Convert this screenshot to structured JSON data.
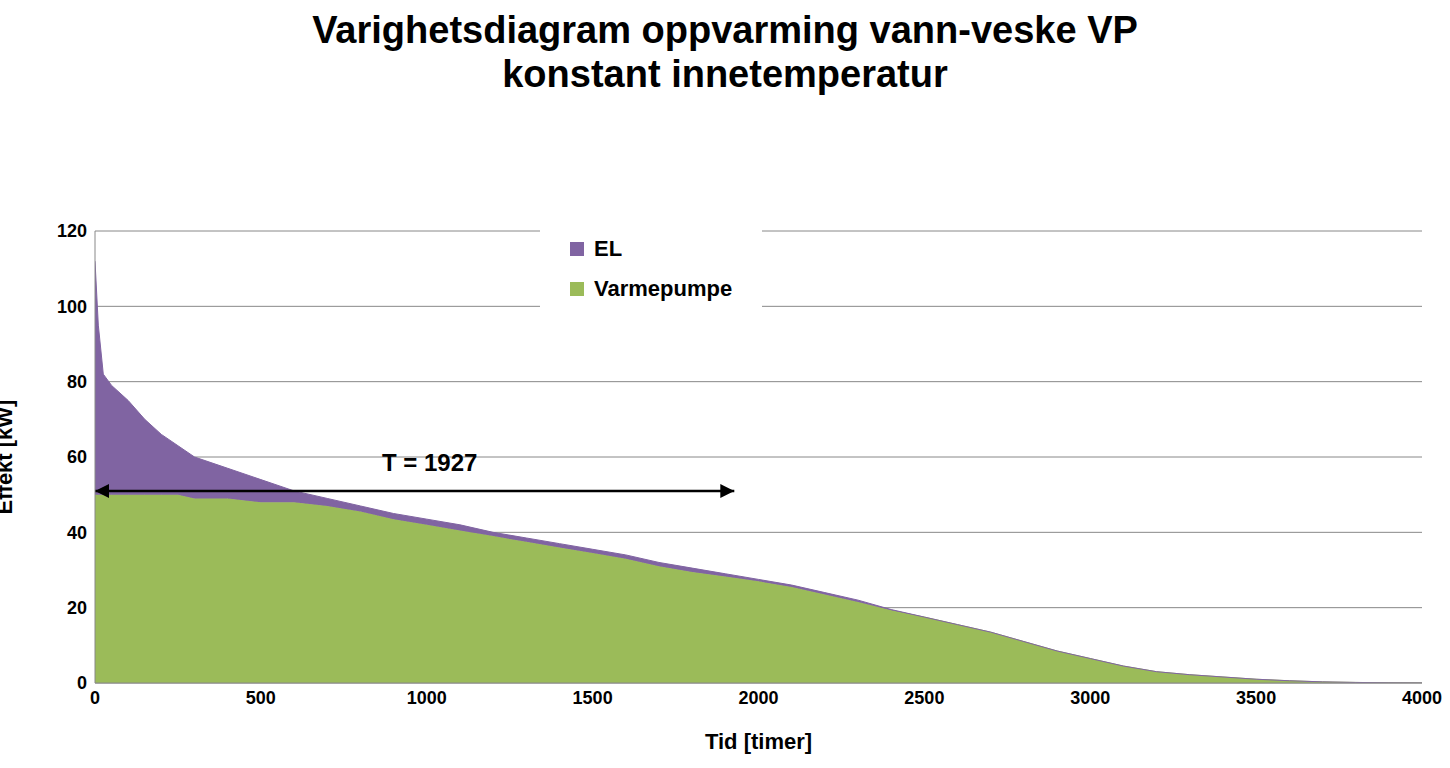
{
  "chart_data": {
    "type": "area",
    "title": "Varighetsdiagram oppvarming vann-veske VP\nkonstant innetemperatur",
    "x_label": "Tid [timer]",
    "y_label": "Effekt [kW]",
    "x": [
      0,
      10,
      25,
      50,
      100,
      150,
      200,
      250,
      300,
      400,
      500,
      600,
      700,
      800,
      900,
      1000,
      1100,
      1200,
      1300,
      1400,
      1500,
      1600,
      1700,
      1800,
      1900,
      2000,
      2100,
      2200,
      2300,
      2400,
      2500,
      2600,
      2700,
      2800,
      2900,
      3000,
      3100,
      3200,
      3300,
      3400,
      3500,
      3600,
      3700,
      3800,
      3900,
      4000
    ],
    "series": [
      {
        "name": "EL",
        "color": "#8064a2",
        "values": [
          62,
          45,
          32,
          29,
          25,
          20,
          16,
          13,
          11,
          8,
          6,
          3,
          2,
          1.5,
          1.5,
          1.5,
          1.5,
          1,
          1,
          1,
          1,
          1,
          1,
          1,
          0.7,
          0.5,
          0.5,
          0.5,
          0.5,
          0.2,
          0,
          0,
          0,
          0,
          0,
          0,
          0,
          0,
          0,
          0,
          0,
          0,
          0,
          0,
          0,
          0
        ]
      },
      {
        "name": "Varmepumpe",
        "color": "#9bbb59",
        "values": [
          50,
          50,
          50,
          50,
          50,
          50,
          50,
          50,
          49,
          49,
          48,
          48,
          47,
          45.5,
          43.5,
          42,
          40.5,
          39,
          37.5,
          36,
          34.5,
          33,
          31,
          29.5,
          28.3,
          27,
          25.5,
          23.5,
          21.5,
          19.3,
          17.5,
          15.5,
          13.5,
          11,
          8.5,
          6.5,
          4.5,
          3,
          2.2,
          1.6,
          1,
          0.6,
          0.3,
          0.15,
          0.05,
          0
        ]
      }
    ],
    "stacked": true,
    "xlim": [
      0,
      4000
    ],
    "xticks": [
      0,
      500,
      1000,
      1500,
      2000,
      2500,
      3000,
      3500,
      4000
    ],
    "ylim": [
      0,
      120
    ],
    "yticks": [
      0,
      20,
      40,
      60,
      80,
      100,
      120
    ],
    "grid": true,
    "legend": "top",
    "annotations": [
      {
        "text": "T = 1927",
        "x": [
          0,
          1927
        ],
        "y": 51
      }
    ]
  }
}
